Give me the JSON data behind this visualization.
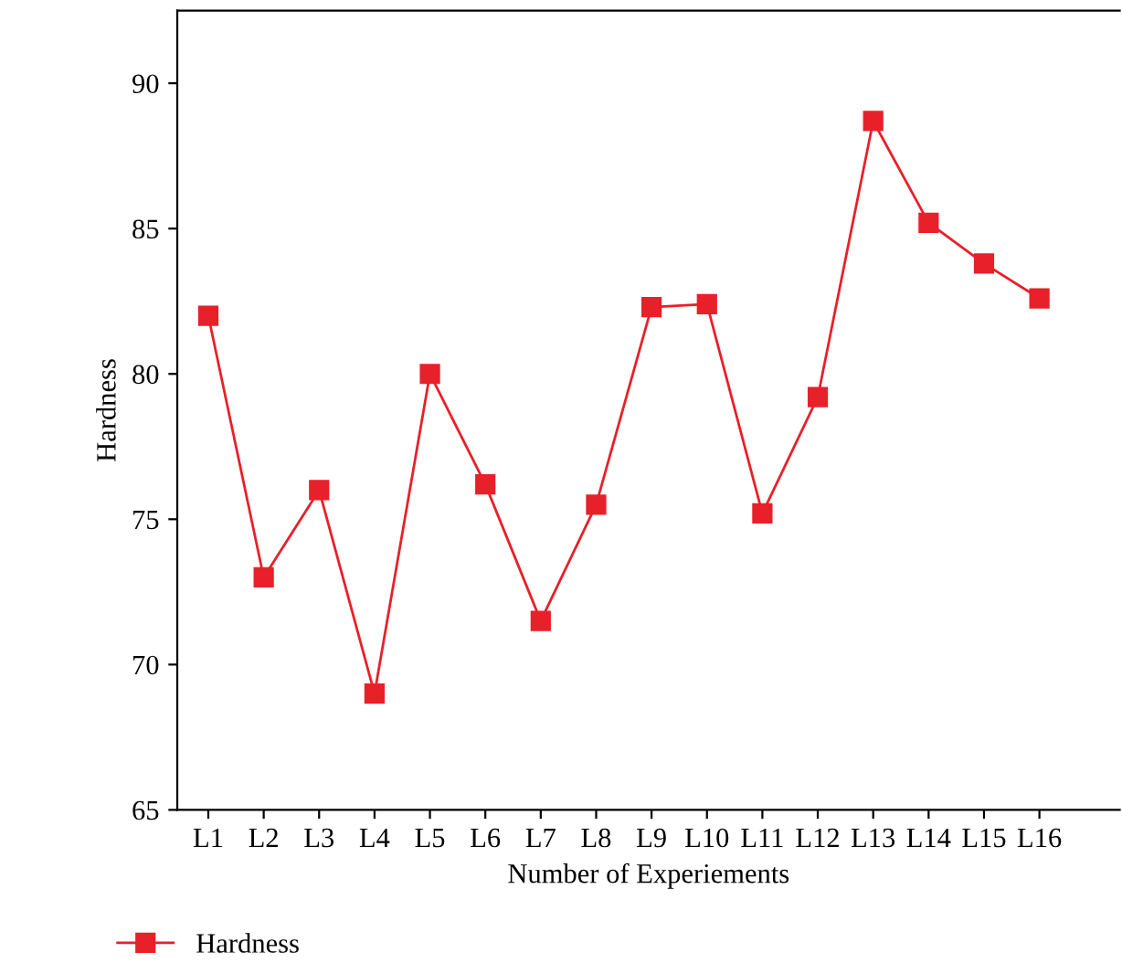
{
  "chart_data": {
    "type": "line",
    "xlabel": "Number of Experiements",
    "ylabel": "Hardness",
    "categories": [
      "L1",
      "L2",
      "L3",
      "L4",
      "L5",
      "L6",
      "L7",
      "L8",
      "L9",
      "L10",
      "L11",
      "L12",
      "L13",
      "L14",
      "L15",
      "L16"
    ],
    "series": [
      {
        "name": "Hardness",
        "color": "#e8202a",
        "values": [
          82.0,
          73.0,
          76.0,
          69.0,
          80.0,
          76.2,
          71.5,
          75.5,
          82.3,
          82.4,
          75.2,
          79.2,
          88.7,
          85.2,
          83.8,
          82.6
        ]
      }
    ],
    "ylim": [
      65,
      92.5
    ],
    "yticks": [
      65,
      70,
      75,
      80,
      85,
      90
    ],
    "marker": "square",
    "line_style": "solid",
    "grid": false,
    "legend": "bottom left"
  }
}
